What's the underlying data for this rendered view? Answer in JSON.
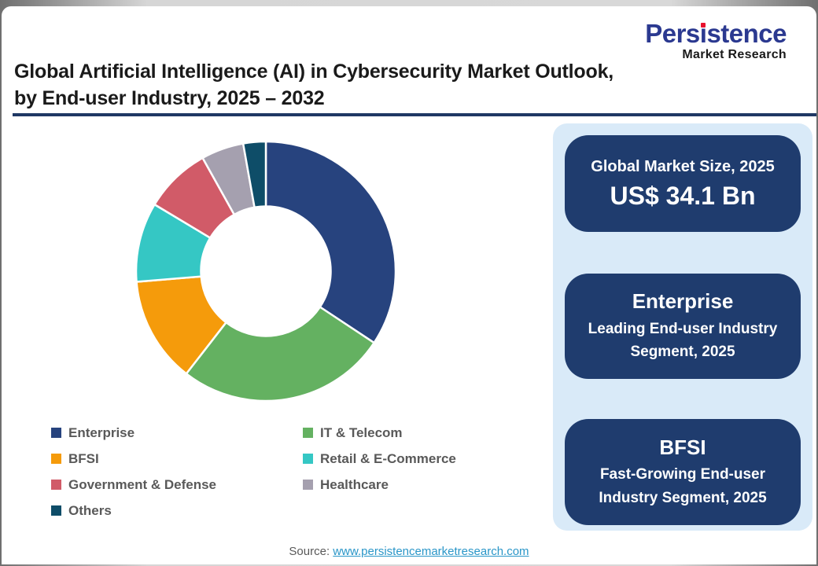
{
  "logo": {
    "brand_pre": "Pers",
    "brand_i": "ı",
    "brand_post": "stence",
    "brand_full": "Persistence",
    "tagline": "Market Research",
    "brand_color": "#2B3990",
    "dot_color": "#E8112D"
  },
  "header": {
    "title_line1": "Global Artificial Intelligence (AI) in Cybersecurity Market Outlook,",
    "title_line2": "by End-user Industry, 2025 – 2032",
    "rule_color": "#1F3864"
  },
  "chart_data": {
    "type": "pie",
    "subtype": "donut",
    "title": "Global Artificial Intelligence (AI) in Cybersecurity Market Outlook, by End-user Industry, 2025 – 2032",
    "categories": [
      "Enterprise",
      "IT & Telecom",
      "BFSI",
      "Retail & E-Commerce",
      "Government & Defense",
      "Healthcare",
      "Others"
    ],
    "values": [
      34.3,
      26.2,
      13.2,
      9.9,
      8.3,
      5.3,
      2.8
    ],
    "values_unit": "% share (estimated from arc angles)",
    "colors": [
      "#27437E",
      "#64B161",
      "#F59B0B",
      "#35C7C4",
      "#D15B68",
      "#A5A0AF",
      "#0E4D68"
    ],
    "start_angle_deg": 0,
    "direction": "clockwise",
    "inner_radius_ratio": 0.5,
    "slice_gap_color": "#FFFFFF",
    "legend_position": "bottom"
  },
  "panel": {
    "background": "#D9EAF8",
    "card_color": "#1F3C6E",
    "cards": [
      {
        "title": "Global Market Size, 2025",
        "value": "US$ 34.1 Bn"
      },
      {
        "title": "Enterprise",
        "subtitle": "Leading End-user Industry Segment, 2025"
      },
      {
        "title": "BFSI",
        "subtitle": "Fast-Growing End-user Industry Segment, 2025"
      }
    ]
  },
  "footer": {
    "source_label": "Source:",
    "source_link": "www.persistencemarketresearch.com",
    "link_color": "#2A96C8"
  }
}
